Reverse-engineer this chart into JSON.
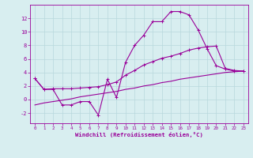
{
  "line1_x": [
    0,
    1,
    2,
    3,
    4,
    5,
    6,
    7,
    8,
    9,
    10,
    11,
    12,
    13,
    14,
    15,
    16,
    17,
    18,
    19,
    20,
    21,
    22,
    23
  ],
  "line1_y": [
    3.1,
    1.5,
    1.5,
    -0.8,
    -0.8,
    -0.3,
    -0.3,
    -2.3,
    3.0,
    0.3,
    5.5,
    8.0,
    9.5,
    11.5,
    11.5,
    13.0,
    13.0,
    12.5,
    10.3,
    7.5,
    5.0,
    4.5,
    4.2,
    4.2
  ],
  "line2_x": [
    0,
    1,
    2,
    3,
    4,
    5,
    6,
    7,
    8,
    9,
    10,
    11,
    12,
    13,
    14,
    15,
    16,
    17,
    18,
    19,
    20,
    21,
    22,
    23
  ],
  "line2_y": [
    3.1,
    1.5,
    1.6,
    1.6,
    1.6,
    1.7,
    1.8,
    1.9,
    2.2,
    2.6,
    3.6,
    4.3,
    5.1,
    5.6,
    6.1,
    6.4,
    6.8,
    7.3,
    7.6,
    7.8,
    7.9,
    4.6,
    4.3,
    4.2
  ],
  "line3_x": [
    0,
    1,
    2,
    3,
    4,
    5,
    6,
    7,
    8,
    9,
    10,
    11,
    12,
    13,
    14,
    15,
    16,
    17,
    18,
    19,
    20,
    21,
    22,
    23
  ],
  "line3_y": [
    -0.8,
    -0.5,
    -0.3,
    -0.1,
    0.1,
    0.4,
    0.6,
    0.8,
    1.0,
    1.2,
    1.5,
    1.7,
    2.0,
    2.2,
    2.5,
    2.7,
    3.0,
    3.2,
    3.4,
    3.6,
    3.8,
    4.0,
    4.1,
    4.2
  ],
  "color": "#990099",
  "bg_color": "#d8eef0",
  "grid_color": "#b8d8dc",
  "xlabel": "Windchill (Refroidissement éolien,°C)",
  "xlim": [
    -0.5,
    23.5
  ],
  "ylim": [
    -3.5,
    14.0
  ],
  "xticks": [
    0,
    1,
    2,
    3,
    4,
    5,
    6,
    7,
    8,
    9,
    10,
    11,
    12,
    13,
    14,
    15,
    16,
    17,
    18,
    19,
    20,
    21,
    22,
    23
  ],
  "yticks": [
    -2,
    0,
    2,
    4,
    6,
    8,
    10,
    12
  ]
}
